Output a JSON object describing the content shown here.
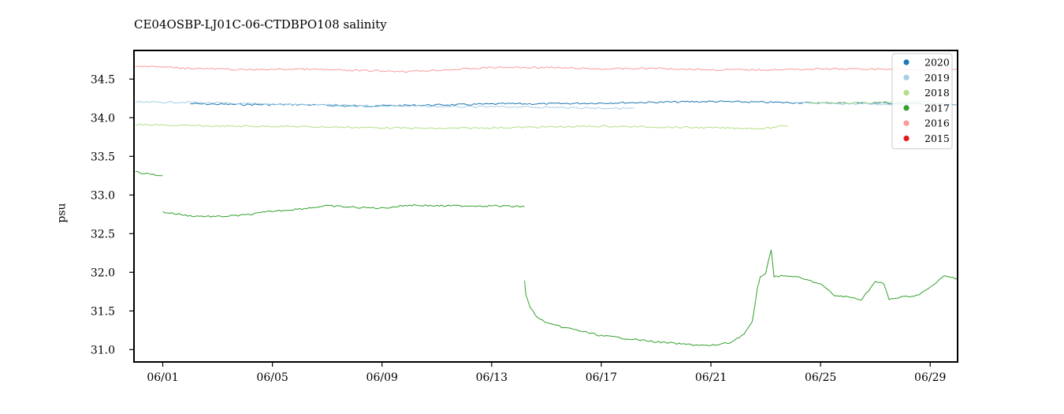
{
  "chart_data": {
    "type": "line",
    "title": "CE04OSBP-LJ01C-06-CTDBPO108 salinity",
    "xlabel": "",
    "ylabel": "psu",
    "x_ticks": [
      "06/01",
      "06/05",
      "06/09",
      "06/13",
      "06/17",
      "06/21",
      "06/25",
      "06/29"
    ],
    "x_tick_days": [
      1,
      5,
      9,
      13,
      17,
      21,
      25,
      29
    ],
    "xlim": [
      -0.05,
      30.0
    ],
    "y_ticks": [
      "31.0",
      "31.5",
      "32.0",
      "32.5",
      "33.0",
      "33.5",
      "34.0",
      "34.5"
    ],
    "y_tick_values": [
      31.0,
      31.5,
      32.0,
      32.5,
      33.0,
      33.5,
      34.0,
      34.5
    ],
    "ylim": [
      30.84,
      34.87
    ],
    "grid": false,
    "legend_position": "top-right",
    "series": [
      {
        "name": "2020",
        "color": "#1f78b4",
        "segments": [
          [
            [
              2.0,
              34.18
            ],
            [
              4.0,
              34.17
            ],
            [
              6.0,
              34.17
            ],
            [
              8.0,
              34.15
            ],
            [
              10.0,
              34.16
            ],
            [
              12.0,
              34.17
            ],
            [
              13.5,
              34.18
            ],
            [
              15.0,
              34.18
            ],
            [
              17.0,
              34.19
            ],
            [
              19.0,
              34.2
            ],
            [
              21.0,
              34.21
            ],
            [
              23.0,
              34.2
            ],
            [
              25.0,
              34.19
            ],
            [
              27.0,
              34.19
            ],
            [
              29.0,
              34.18
            ],
            [
              30.0,
              34.17
            ]
          ]
        ]
      },
      {
        "name": "2019",
        "color": "#a6cee3",
        "segments": [
          [
            [
              0.0,
              34.2
            ],
            [
              2.0,
              34.2
            ],
            [
              4.0,
              34.18
            ],
            [
              6.0,
              34.17
            ],
            [
              8.0,
              34.16
            ],
            [
              10.0,
              34.15
            ],
            [
              12.0,
              34.14
            ],
            [
              14.0,
              34.14
            ],
            [
              16.0,
              34.13
            ],
            [
              18.2,
              34.12
            ]
          ],
          [
            [
              24.0,
              34.19
            ],
            [
              26.0,
              34.18
            ],
            [
              28.0,
              34.17
            ],
            [
              30.0,
              34.17
            ]
          ]
        ]
      },
      {
        "name": "2018",
        "color": "#b2df8a",
        "segments": [
          [
            [
              0.0,
              33.91
            ],
            [
              1.5,
              33.9
            ],
            [
              3.0,
              33.89
            ],
            [
              5.0,
              33.89
            ],
            [
              7.0,
              33.88
            ],
            [
              9.0,
              33.87
            ],
            [
              11.0,
              33.86
            ],
            [
              13.0,
              33.87
            ],
            [
              15.0,
              33.88
            ],
            [
              17.0,
              33.89
            ],
            [
              19.0,
              33.88
            ],
            [
              21.0,
              33.87
            ],
            [
              23.0,
              33.86
            ],
            [
              23.8,
              33.9
            ]
          ],
          [
            [
              24.5,
              34.2
            ],
            [
              26.0,
              34.19
            ],
            [
              27.5,
              34.2
            ],
            [
              29.0,
              34.22
            ]
          ]
        ]
      },
      {
        "name": "2017",
        "color": "#33a02c",
        "segments": [
          [
            [
              0.0,
              33.3
            ],
            [
              0.5,
              33.27
            ],
            [
              1.0,
              33.25
            ]
          ],
          [
            [
              1.0,
              32.78
            ],
            [
              2.0,
              32.73
            ],
            [
              3.0,
              32.72
            ],
            [
              4.0,
              32.74
            ],
            [
              5.0,
              32.79
            ],
            [
              6.0,
              32.82
            ],
            [
              7.0,
              32.86
            ],
            [
              8.0,
              32.84
            ],
            [
              9.0,
              32.83
            ],
            [
              10.0,
              32.87
            ],
            [
              11.0,
              32.86
            ],
            [
              12.0,
              32.86
            ],
            [
              13.0,
              32.86
            ],
            [
              14.2,
              32.85
            ]
          ],
          [
            [
              14.2,
              31.9
            ],
            [
              14.25,
              31.7
            ],
            [
              14.4,
              31.55
            ],
            [
              14.7,
              31.4
            ],
            [
              15.2,
              31.32
            ],
            [
              16.0,
              31.26
            ],
            [
              17.0,
              31.18
            ],
            [
              18.0,
              31.14
            ],
            [
              19.0,
              31.1
            ],
            [
              20.0,
              31.07
            ],
            [
              21.0,
              31.05
            ],
            [
              21.7,
              31.09
            ],
            [
              22.2,
              31.2
            ],
            [
              22.5,
              31.35
            ],
            [
              22.6,
              31.55
            ],
            [
              22.7,
              31.8
            ],
            [
              22.8,
              31.95
            ],
            [
              23.0,
              31.98
            ],
            [
              23.2,
              32.3
            ],
            [
              23.3,
              31.95
            ],
            [
              24.0,
              31.95
            ],
            [
              24.5,
              31.9
            ],
            [
              25.0,
              31.85
            ],
            [
              25.5,
              31.7
            ],
            [
              26.0,
              31.68
            ],
            [
              26.5,
              31.65
            ],
            [
              27.0,
              31.88
            ],
            [
              27.3,
              31.85
            ],
            [
              27.5,
              31.65
            ],
            [
              28.0,
              31.68
            ],
            [
              28.5,
              31.7
            ],
            [
              29.0,
              31.8
            ],
            [
              29.5,
              31.95
            ],
            [
              30.0,
              31.92
            ]
          ]
        ]
      },
      {
        "name": "2016",
        "color": "#fb9a99",
        "segments": [
          [
            [
              0.0,
              34.67
            ],
            [
              2.0,
              34.64
            ],
            [
              4.0,
              34.62
            ],
            [
              6.0,
              34.63
            ],
            [
              8.0,
              34.61
            ],
            [
              10.0,
              34.6
            ],
            [
              12.0,
              34.63
            ],
            [
              13.0,
              34.65
            ],
            [
              15.0,
              34.65
            ],
            [
              17.0,
              34.63
            ],
            [
              19.0,
              34.64
            ],
            [
              21.0,
              34.62
            ],
            [
              23.0,
              34.62
            ],
            [
              25.0,
              34.63
            ],
            [
              27.0,
              34.63
            ],
            [
              29.0,
              34.62
            ],
            [
              30.0,
              34.63
            ]
          ]
        ]
      },
      {
        "name": "2015",
        "color": "#e31a1c",
        "segments": []
      }
    ]
  }
}
